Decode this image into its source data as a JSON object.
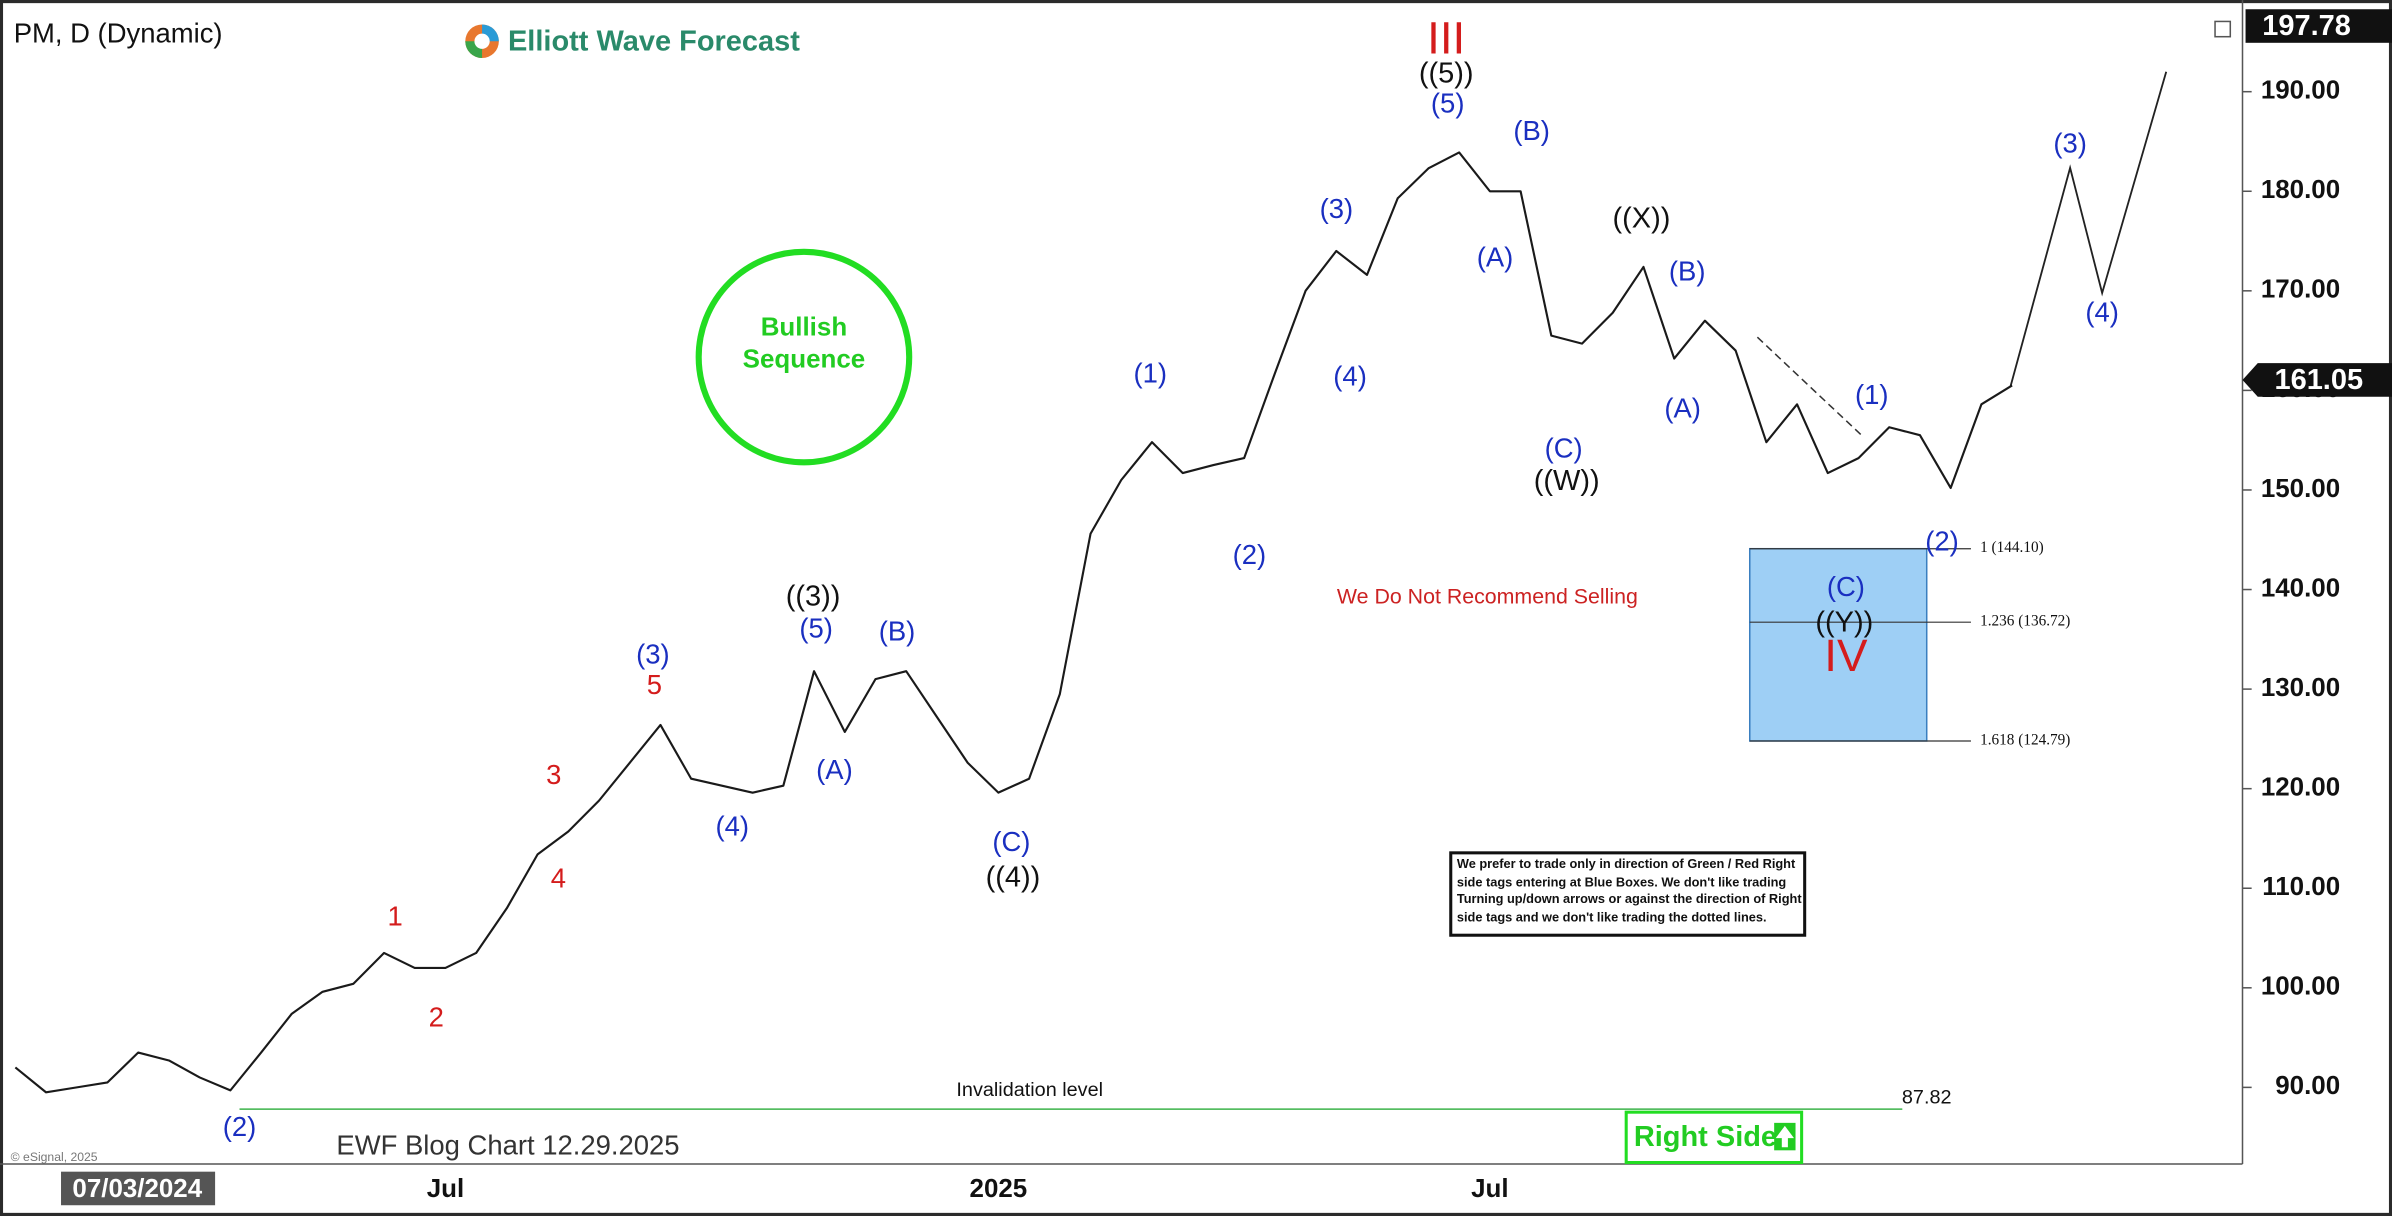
{
  "header": {
    "symbol": "PM, D (Dynamic)",
    "logo": "Elliott Wave Forecast",
    "copyright": "© eSignal, 2025",
    "cursor_date": "07/03/2024",
    "blog_chart": "EWF Blog Chart 12.29.2025"
  },
  "chart_data": {
    "type": "line",
    "color": "#1a1a1a",
    "categories": [
      null,
      null,
      null,
      null,
      null,
      null,
      null,
      null,
      null,
      null,
      null,
      null,
      null,
      null,
      "Jul",
      null,
      null,
      null,
      null,
      null,
      null,
      null,
      null,
      null,
      null,
      null,
      null,
      null,
      null,
      null,
      null,
      null,
      "2025",
      null,
      null,
      null,
      null,
      null,
      null,
      null,
      null,
      null,
      null,
      null,
      null,
      null,
      null,
      null,
      "Jul",
      null,
      null,
      null,
      null,
      null,
      null,
      null,
      null,
      null,
      null,
      null,
      null,
      null,
      null,
      null,
      null,
      null,
      null,
      null,
      null,
      null,
      null,
      null,
      null
    ],
    "values": [
      92,
      89.5,
      90,
      90.5,
      93.5,
      92.7,
      91,
      89.7,
      93.5,
      97.4,
      99.6,
      100.4,
      103.5,
      102,
      102,
      103.5,
      108,
      113.4,
      115.7,
      118.8,
      122.6,
      126.4,
      121,
      120.3,
      119.6,
      120.3,
      131.8,
      125.7,
      131,
      131.8,
      127.2,
      122.6,
      119.6,
      121,
      129.5,
      145.6,
      151,
      154.8,
      151.7,
      152.5,
      153.2,
      161.7,
      170,
      174,
      171.6,
      179.3,
      182.3,
      183.9,
      180,
      180,
      165.5,
      164.7,
      167.8,
      172.4,
      163.2,
      167,
      164,
      154.8,
      158.6,
      151.7,
      153.2,
      156.3,
      155.5,
      150.2,
      158.6,
      160.5,
      null,
      null,
      null,
      null,
      null,
      null,
      null
    ],
    "ylim": [
      82.3,
      199.2
    ],
    "yticks": [
      {
        "value": 90,
        "label": "90.00"
      },
      {
        "value": 100,
        "label": "100.00"
      },
      {
        "value": 110,
        "label": "110.00"
      },
      {
        "value": 120,
        "label": "120.00"
      },
      {
        "value": 130,
        "label": "130.00"
      },
      {
        "value": 140,
        "label": "140.00"
      },
      {
        "value": 150,
        "label": "150.00"
      },
      {
        "value": 160,
        "label": "160.00"
      },
      {
        "value": 170,
        "label": "170.00"
      },
      {
        "value": 180,
        "label": "180.00"
      },
      {
        "value": 190,
        "label": "190.00"
      }
    ],
    "grid": false,
    "last_price": 161.05,
    "high_price": 197.78,
    "invalidation": {
      "value": 87.82,
      "text": "Invalidation level"
    },
    "fib_levels": [
      {
        "value": 144.1,
        "label": "1 (144.10)"
      },
      {
        "value": 136.72,
        "label": "1.236 (136.72)"
      },
      {
        "value": 124.79,
        "label": "1.618 (124.79)"
      }
    ],
    "annotations": [
      "(2)",
      "(3)",
      "(4)",
      "(5)",
      "(B)",
      "(A)",
      "(C)",
      "(1)",
      "(2)",
      "(3)",
      "(4)",
      "(5)",
      "(B)",
      "(A)",
      "(C)",
      "(B)",
      "(A)",
      "(1)",
      "(C)",
      "(2)",
      "(3)",
      "(4)",
      "((3))",
      "((4))",
      "((5))",
      "((W))",
      "((X))",
      "((Y))",
      "1",
      "2",
      "3",
      "4",
      "5",
      "III",
      "IV"
    ],
    "bullish_sequence": "Bullish Sequence",
    "warning": "We Do Not Recommend Selling",
    "disclaimer": "We prefer to trade only in direction of Green / Red Right side tags entering at Blue Boxes. We don't like trading Turning up/down arrows or against the direction of Right side tags and we don't like trading the dotted lines.",
    "right_side": "Right Side"
  }
}
